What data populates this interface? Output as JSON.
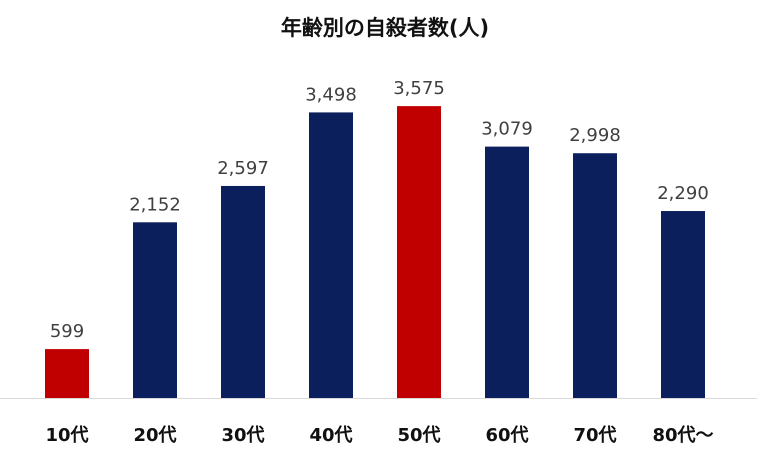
{
  "chart_data": {
    "type": "bar",
    "title": "年齢別の自殺者数(人)",
    "xlabel": "",
    "ylabel": "",
    "categories": [
      "10代",
      "20代",
      "30代",
      "40代",
      "50代",
      "60代",
      "70代",
      "80代～"
    ],
    "values": [
      599,
      2152,
      2597,
      3498,
      3575,
      3079,
      2998,
      2290
    ],
    "value_labels": [
      "599",
      "2,152",
      "2,597",
      "3,498",
      "3,575",
      "3,079",
      "2,998",
      "2,290"
    ],
    "highlighted_categories": [
      "10代",
      "50代"
    ],
    "colors": {
      "default_bar": "#0b1f5c",
      "highlight_bar": "#c00000",
      "value_text": "#404040",
      "baseline": "#d9d9d9"
    },
    "ylim": [
      0,
      3650
    ],
    "grid": false,
    "legend": "none"
  }
}
